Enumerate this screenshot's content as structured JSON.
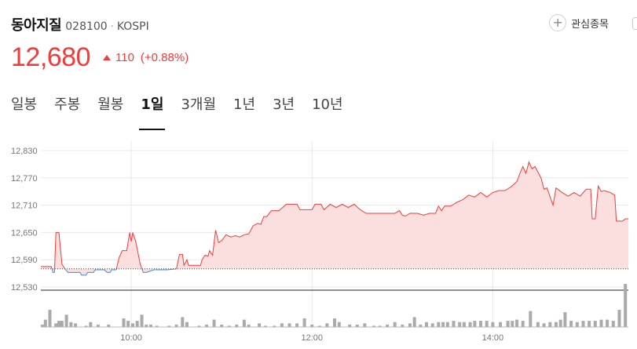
{
  "stock": {
    "name": "동아지질",
    "code": "028100",
    "separator": "·",
    "market": "KOSPI"
  },
  "watchlist": {
    "icon": "plus-icon",
    "label": "관심종목"
  },
  "quote": {
    "price": "12,680",
    "direction": "up-triangle-icon",
    "change": "110",
    "change_pct": "(+0.88%)"
  },
  "tabs": [
    {
      "label": "일봉",
      "active": false
    },
    {
      "label": "주봉",
      "active": false
    },
    {
      "label": "월봉",
      "active": false
    },
    {
      "label": "1일",
      "active": true
    },
    {
      "label": "3개월",
      "active": false
    },
    {
      "label": "1년",
      "active": false
    },
    {
      "label": "3년",
      "active": false
    },
    {
      "label": "10년",
      "active": false
    }
  ],
  "colors": {
    "up": "#f23b3b",
    "down": "#3a8ee6",
    "fill_up": "#fbdede",
    "grid": "#e8e8e8",
    "volume": "#aaaaaa"
  },
  "chart_data": {
    "type": "line",
    "title": "",
    "xlabel": "",
    "ylabel": "",
    "ylim": [
      12530,
      12850
    ],
    "yticks": [
      "12,830",
      "12,770",
      "12,710",
      "12,650",
      "12,590",
      "12,530"
    ],
    "ytick_values": [
      12830,
      12770,
      12710,
      12650,
      12590,
      12530
    ],
    "xlim": [
      "09:00",
      "15:30"
    ],
    "xticks": [
      "10:00",
      "12:00",
      "14:00"
    ],
    "xtick_values": [
      "10:00",
      "12:00",
      "14:00"
    ],
    "baseline": 12570,
    "series": [
      {
        "values": [
          [
            "09:00",
            12575
          ],
          [
            "09:07",
            12575
          ],
          [
            "09:08",
            12562
          ],
          [
            "09:09",
            12562
          ],
          [
            "09:10",
            12650
          ],
          [
            "09:12",
            12650
          ],
          [
            "09:14",
            12580
          ],
          [
            "09:16",
            12570
          ],
          [
            "09:18",
            12562
          ],
          [
            "09:20",
            12562
          ],
          [
            "09:26",
            12562
          ],
          [
            "09:27",
            12556
          ],
          [
            "09:30",
            12556
          ],
          [
            "09:31",
            12562
          ],
          [
            "09:35",
            12562
          ],
          [
            "09:36",
            12568
          ],
          [
            "09:42",
            12568
          ],
          [
            "09:44",
            12562
          ],
          [
            "09:46",
            12562
          ],
          [
            "09:47",
            12568
          ],
          [
            "09:50",
            12568
          ],
          [
            "09:52",
            12595
          ],
          [
            "09:54",
            12610
          ],
          [
            "09:57",
            12610
          ],
          [
            "09:59",
            12650
          ],
          [
            "10:00",
            12630
          ],
          [
            "10:01",
            12650
          ],
          [
            "10:03",
            12630
          ],
          [
            "10:06",
            12580
          ],
          [
            "10:08",
            12562
          ],
          [
            "10:10",
            12562
          ],
          [
            "10:15",
            12568
          ],
          [
            "10:24",
            12568
          ],
          [
            "10:30",
            12570
          ],
          [
            "10:32",
            12602
          ],
          [
            "10:34",
            12602
          ],
          [
            "10:35",
            12578
          ],
          [
            "10:37",
            12590
          ],
          [
            "10:38",
            12578
          ],
          [
            "10:46",
            12578
          ],
          [
            "10:47",
            12590
          ],
          [
            "10:49",
            12600
          ],
          [
            "10:51",
            12598
          ],
          [
            "10:52",
            12610
          ],
          [
            "10:54",
            12600
          ],
          [
            "10:56",
            12655
          ],
          [
            "10:58",
            12628
          ],
          [
            "11:00",
            12632
          ],
          [
            "11:03",
            12645
          ],
          [
            "11:06",
            12640
          ],
          [
            "11:09",
            12643
          ],
          [
            "11:12",
            12640
          ],
          [
            "11:15",
            12645
          ],
          [
            "11:18",
            12647
          ],
          [
            "11:21",
            12665
          ],
          [
            "11:24",
            12670
          ],
          [
            "11:26",
            12668
          ],
          [
            "11:28",
            12685
          ],
          [
            "11:30",
            12685
          ],
          [
            "11:33",
            12698
          ],
          [
            "11:38",
            12698
          ],
          [
            "11:43",
            12712
          ],
          [
            "11:50",
            12712
          ],
          [
            "11:52",
            12700
          ],
          [
            "11:58",
            12700
          ],
          [
            "12:00",
            12700
          ],
          [
            "12:02",
            12712
          ],
          [
            "12:06",
            12712
          ],
          [
            "12:08",
            12700
          ],
          [
            "12:12",
            12712
          ],
          [
            "12:16",
            12705
          ],
          [
            "12:20",
            12712
          ],
          [
            "12:24",
            12705
          ],
          [
            "12:28",
            12712
          ],
          [
            "12:32",
            12700
          ],
          [
            "12:36",
            12692
          ],
          [
            "12:40",
            12692
          ],
          [
            "12:48",
            12692
          ],
          [
            "12:55",
            12692
          ],
          [
            "12:58",
            12698
          ],
          [
            "13:00",
            12688
          ],
          [
            "13:02",
            12686
          ],
          [
            "13:05",
            12692
          ],
          [
            "13:10",
            12692
          ],
          [
            "13:14",
            12688
          ],
          [
            "13:18",
            12692
          ],
          [
            "13:22",
            12692
          ],
          [
            "13:24",
            12708
          ],
          [
            "13:26",
            12698
          ],
          [
            "13:28",
            12708
          ],
          [
            "13:32",
            12708
          ],
          [
            "13:36",
            12716
          ],
          [
            "13:40",
            12722
          ],
          [
            "13:44",
            12732
          ],
          [
            "13:48",
            12728
          ],
          [
            "13:52",
            12738
          ],
          [
            "13:56",
            12728
          ],
          [
            "14:00",
            12738
          ],
          [
            "14:04",
            12742
          ],
          [
            "14:08",
            12742
          ],
          [
            "14:12",
            12750
          ],
          [
            "14:16",
            12762
          ],
          [
            "14:18",
            12780
          ],
          [
            "14:20",
            12795
          ],
          [
            "14:22",
            12780
          ],
          [
            "14:24",
            12805
          ],
          [
            "14:26",
            12790
          ],
          [
            "14:28",
            12795
          ],
          [
            "14:32",
            12770
          ],
          [
            "14:34",
            12745
          ],
          [
            "14:36",
            12748
          ],
          [
            "14:40",
            12710
          ],
          [
            "14:42",
            12748
          ],
          [
            "14:46",
            12738
          ],
          [
            "14:50",
            12730
          ],
          [
            "14:54",
            12738
          ],
          [
            "14:58",
            12730
          ],
          [
            "15:02",
            12745
          ],
          [
            "15:05",
            12745
          ],
          [
            "15:06",
            12680
          ],
          [
            "15:08",
            12680
          ],
          [
            "15:10",
            12752
          ],
          [
            "15:12",
            12740
          ],
          [
            "15:14",
            12742
          ],
          [
            "15:18",
            12738
          ],
          [
            "15:21",
            12732
          ],
          [
            "15:22",
            12675
          ],
          [
            "15:26",
            12675
          ],
          [
            "15:28",
            12680
          ],
          [
            "15:30",
            12680
          ]
        ]
      }
    ],
    "volume": [
      [
        "09:01",
        2
      ],
      [
        "09:03",
        6
      ],
      [
        "09:06",
        14
      ],
      [
        "09:10",
        3
      ],
      [
        "09:12",
        5
      ],
      [
        "09:14",
        5
      ],
      [
        "09:17",
        10
      ],
      [
        "09:20",
        4
      ],
      [
        "09:23",
        3
      ],
      [
        "09:30",
        1
      ],
      [
        "09:33",
        4
      ],
      [
        "09:38",
        2
      ],
      [
        "09:45",
        2
      ],
      [
        "09:55",
        7
      ],
      [
        "09:58",
        5
      ],
      [
        "10:01",
        3
      ],
      [
        "10:04",
        5
      ],
      [
        "10:07",
        10
      ],
      [
        "10:10",
        2
      ],
      [
        "10:13",
        2
      ],
      [
        "10:17",
        1
      ],
      [
        "10:25",
        1
      ],
      [
        "10:30",
        2
      ],
      [
        "10:34",
        8
      ],
      [
        "10:37",
        4
      ],
      [
        "10:45",
        1
      ],
      [
        "10:50",
        2
      ],
      [
        "10:55",
        6
      ],
      [
        "11:00",
        2
      ],
      [
        "11:05",
        1
      ],
      [
        "11:10",
        2
      ],
      [
        "11:15",
        6
      ],
      [
        "11:18",
        2
      ],
      [
        "11:25",
        3
      ],
      [
        "11:29",
        1
      ],
      [
        "11:35",
        1
      ],
      [
        "11:40",
        3
      ],
      [
        "11:45",
        3
      ],
      [
        "11:50",
        3
      ],
      [
        "11:55",
        7
      ],
      [
        "12:00",
        2
      ],
      [
        "12:05",
        1
      ],
      [
        "12:10",
        3
      ],
      [
        "12:15",
        7
      ],
      [
        "12:18",
        4
      ],
      [
        "12:25",
        2
      ],
      [
        "12:30",
        2
      ],
      [
        "12:35",
        3
      ],
      [
        "12:41",
        1
      ],
      [
        "12:45",
        1
      ],
      [
        "12:50",
        2
      ],
      [
        "12:55",
        4
      ],
      [
        "13:00",
        2
      ],
      [
        "13:05",
        3
      ],
      [
        "13:08",
        8
      ],
      [
        "13:12",
        2
      ],
      [
        "13:16",
        4
      ],
      [
        "13:20",
        3
      ],
      [
        "13:24",
        4
      ],
      [
        "13:27",
        4
      ],
      [
        "13:30",
        4
      ],
      [
        "13:34",
        5
      ],
      [
        "13:38",
        4
      ],
      [
        "13:41",
        4
      ],
      [
        "13:45",
        4
      ],
      [
        "13:48",
        5
      ],
      [
        "13:52",
        5
      ],
      [
        "13:56",
        5
      ],
      [
        "14:00",
        4
      ],
      [
        "14:05",
        4
      ],
      [
        "14:10",
        5
      ],
      [
        "14:13",
        5
      ],
      [
        "14:16",
        6
      ],
      [
        "14:20",
        5
      ],
      [
        "14:25",
        13
      ],
      [
        "14:30",
        4
      ],
      [
        "14:34",
        3
      ],
      [
        "14:38",
        4
      ],
      [
        "14:42",
        4
      ],
      [
        "14:45",
        6
      ],
      [
        "14:48",
        12
      ],
      [
        "14:52",
        5
      ],
      [
        "14:56",
        4
      ],
      [
        "15:00",
        5
      ],
      [
        "15:04",
        5
      ],
      [
        "15:08",
        5
      ],
      [
        "15:12",
        6
      ],
      [
        "15:16",
        6
      ],
      [
        "15:20",
        5
      ],
      [
        "15:24",
        14
      ],
      [
        "15:28",
        35
      ]
    ]
  }
}
